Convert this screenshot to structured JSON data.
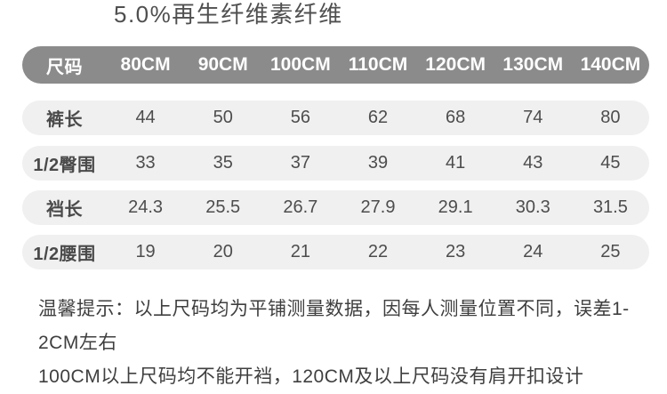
{
  "page": {
    "title": "5.0%再生纤维素纤维"
  },
  "size_chart": {
    "header": {
      "label": "尺码",
      "columns": [
        "80CM",
        "90CM",
        "100CM",
        "110CM",
        "120CM",
        "130CM",
        "140CM"
      ]
    },
    "rows": [
      {
        "label": "裤长",
        "values": [
          "44",
          "50",
          "56",
          "62",
          "68",
          "74",
          "80"
        ]
      },
      {
        "label": "1/2臀围",
        "values": [
          "33",
          "35",
          "37",
          "39",
          "41",
          "43",
          "45"
        ]
      },
      {
        "label": "裆长",
        "values": [
          "24.3",
          "25.5",
          "26.7",
          "27.9",
          "29.1",
          "30.3",
          "31.5"
        ]
      },
      {
        "label": "1/2腰围",
        "values": [
          "19",
          "20",
          "21",
          "22",
          "23",
          "24",
          "25"
        ]
      }
    ]
  },
  "note": {
    "line1": "温馨提示：以上尺码均为平铺测量数据，因每人测量位置不同，误差1-2CM左右",
    "line2": "100CM以上尺码均不能开裆，120CM及以上尺码没有肩开扣设计"
  },
  "colors": {
    "header_bg": "#8b8b8b",
    "header_text": "#ffffff",
    "row_bg": "#f0f0f0",
    "label_text": "#4a4a4a",
    "value_text": "#4d4d4d",
    "note_text": "#3f3f3f"
  }
}
